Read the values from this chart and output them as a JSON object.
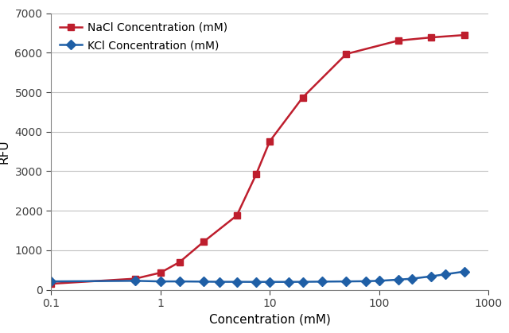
{
  "nacl_x": [
    0.1,
    0.59,
    1.0,
    1.5,
    2.5,
    5.0,
    7.5,
    10.0,
    20.0,
    50.0,
    150.0,
    300.0,
    600.0
  ],
  "nacl_y": [
    150,
    280,
    430,
    700,
    1220,
    1880,
    2920,
    3760,
    4870,
    5970,
    6310,
    6390,
    6450
  ],
  "kcl_x": [
    0.1,
    0.59,
    1.0,
    1.5,
    2.5,
    3.5,
    5.0,
    7.5,
    10.0,
    15.0,
    20.0,
    30.0,
    50.0,
    75.0,
    100.0,
    150.0,
    200.0,
    300.0,
    400.0,
    600.0
  ],
  "kcl_y": [
    210,
    225,
    210,
    210,
    205,
    200,
    200,
    198,
    198,
    198,
    200,
    205,
    210,
    215,
    225,
    255,
    280,
    340,
    390,
    460
  ],
  "nacl_color": "#BE1E2D",
  "kcl_color": "#1F5FA6",
  "nacl_label": "NaCl Concentration (mM)",
  "kcl_label": "KCl Concentration (mM)",
  "xlabel": "Concentration (mM)",
  "ylabel": "RFU",
  "ylim": [
    0,
    7000
  ],
  "xlim": [
    0.1,
    1000
  ],
  "yticks": [
    0,
    1000,
    2000,
    3000,
    4000,
    5000,
    6000,
    7000
  ],
  "xticks": [
    0.1,
    1,
    10,
    100,
    1000
  ],
  "xtick_labels": [
    "0.1",
    "1",
    "10",
    "100",
    "1000"
  ],
  "bg_color": "#FFFFFF",
  "grid_color": "#C0C0C0",
  "nacl_marker": "s",
  "kcl_marker": "D",
  "marker_size": 6,
  "linewidth": 1.8,
  "legend_fontsize": 10,
  "axis_fontsize": 11,
  "tick_fontsize": 10
}
